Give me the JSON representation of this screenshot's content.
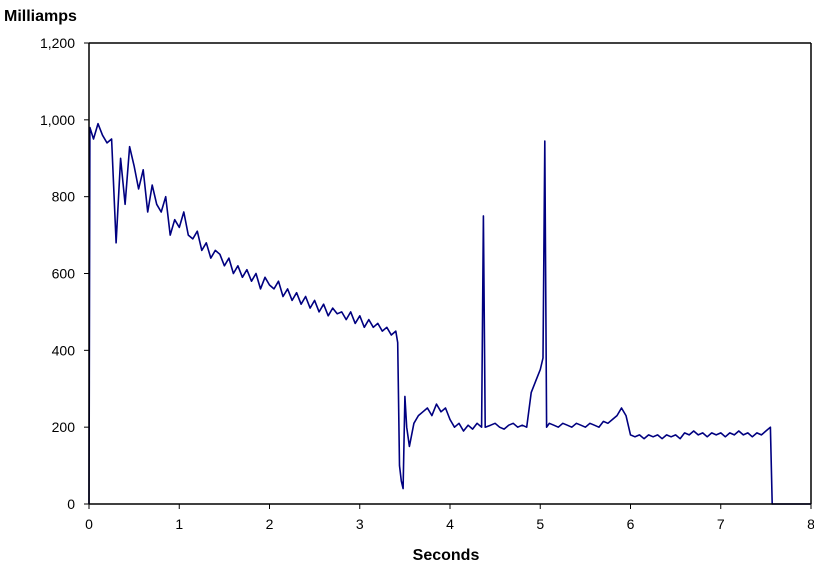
{
  "chart_data": {
    "type": "line",
    "ylabel": "Milliamps",
    "xlabel": "Seconds",
    "xlim": [
      0,
      8
    ],
    "ylim": [
      0,
      1200
    ],
    "x_ticks": [
      "0",
      "1",
      "2",
      "3",
      "4",
      "5",
      "6",
      "7",
      "8"
    ],
    "y_ticks": [
      "0",
      "200",
      "400",
      "600",
      "800",
      "1,000",
      "1,200"
    ],
    "grid": false,
    "line_color": "#000080",
    "series": [
      {
        "points": [
          [
            0.0,
            0
          ],
          [
            0.01,
            980
          ],
          [
            0.05,
            950
          ],
          [
            0.1,
            990
          ],
          [
            0.15,
            960
          ],
          [
            0.2,
            940
          ],
          [
            0.25,
            950
          ],
          [
            0.3,
            680
          ],
          [
            0.35,
            900
          ],
          [
            0.4,
            780
          ],
          [
            0.45,
            930
          ],
          [
            0.5,
            880
          ],
          [
            0.55,
            820
          ],
          [
            0.6,
            870
          ],
          [
            0.65,
            760
          ],
          [
            0.7,
            830
          ],
          [
            0.75,
            780
          ],
          [
            0.8,
            760
          ],
          [
            0.85,
            800
          ],
          [
            0.9,
            700
          ],
          [
            0.95,
            740
          ],
          [
            1.0,
            720
          ],
          [
            1.05,
            760
          ],
          [
            1.1,
            700
          ],
          [
            1.15,
            690
          ],
          [
            1.2,
            710
          ],
          [
            1.25,
            660
          ],
          [
            1.3,
            680
          ],
          [
            1.35,
            640
          ],
          [
            1.4,
            660
          ],
          [
            1.45,
            650
          ],
          [
            1.5,
            620
          ],
          [
            1.55,
            640
          ],
          [
            1.6,
            600
          ],
          [
            1.65,
            620
          ],
          [
            1.7,
            590
          ],
          [
            1.75,
            610
          ],
          [
            1.8,
            580
          ],
          [
            1.85,
            600
          ],
          [
            1.9,
            560
          ],
          [
            1.95,
            590
          ],
          [
            2.0,
            570
          ],
          [
            2.05,
            560
          ],
          [
            2.1,
            580
          ],
          [
            2.15,
            540
          ],
          [
            2.2,
            560
          ],
          [
            2.25,
            530
          ],
          [
            2.3,
            550
          ],
          [
            2.35,
            520
          ],
          [
            2.4,
            540
          ],
          [
            2.45,
            510
          ],
          [
            2.5,
            530
          ],
          [
            2.55,
            500
          ],
          [
            2.6,
            520
          ],
          [
            2.65,
            490
          ],
          [
            2.7,
            510
          ],
          [
            2.75,
            495
          ],
          [
            2.8,
            500
          ],
          [
            2.85,
            480
          ],
          [
            2.9,
            500
          ],
          [
            2.95,
            470
          ],
          [
            3.0,
            490
          ],
          [
            3.05,
            460
          ],
          [
            3.1,
            480
          ],
          [
            3.15,
            460
          ],
          [
            3.2,
            470
          ],
          [
            3.25,
            450
          ],
          [
            3.3,
            460
          ],
          [
            3.35,
            440
          ],
          [
            3.4,
            450
          ],
          [
            3.42,
            420
          ],
          [
            3.44,
            100
          ],
          [
            3.46,
            60
          ],
          [
            3.48,
            40
          ],
          [
            3.5,
            280
          ],
          [
            3.52,
            200
          ],
          [
            3.55,
            150
          ],
          [
            3.6,
            210
          ],
          [
            3.65,
            230
          ],
          [
            3.7,
            240
          ],
          [
            3.75,
            250
          ],
          [
            3.8,
            230
          ],
          [
            3.85,
            260
          ],
          [
            3.9,
            240
          ],
          [
            3.95,
            250
          ],
          [
            4.0,
            220
          ],
          [
            4.05,
            200
          ],
          [
            4.1,
            210
          ],
          [
            4.15,
            190
          ],
          [
            4.2,
            205
          ],
          [
            4.25,
            195
          ],
          [
            4.3,
            210
          ],
          [
            4.35,
            200
          ],
          [
            4.37,
            750
          ],
          [
            4.39,
            200
          ],
          [
            4.45,
            205
          ],
          [
            4.5,
            210
          ],
          [
            4.55,
            200
          ],
          [
            4.6,
            195
          ],
          [
            4.65,
            205
          ],
          [
            4.7,
            210
          ],
          [
            4.75,
            200
          ],
          [
            4.8,
            205
          ],
          [
            4.85,
            200
          ],
          [
            4.9,
            290
          ],
          [
            4.95,
            320
          ],
          [
            5.0,
            350
          ],
          [
            5.03,
            380
          ],
          [
            5.05,
            945
          ],
          [
            5.07,
            200
          ],
          [
            5.1,
            210
          ],
          [
            5.15,
            205
          ],
          [
            5.2,
            200
          ],
          [
            5.25,
            210
          ],
          [
            5.3,
            205
          ],
          [
            5.35,
            200
          ],
          [
            5.4,
            210
          ],
          [
            5.45,
            205
          ],
          [
            5.5,
            200
          ],
          [
            5.55,
            210
          ],
          [
            5.6,
            205
          ],
          [
            5.65,
            200
          ],
          [
            5.7,
            215
          ],
          [
            5.75,
            210
          ],
          [
            5.8,
            220
          ],
          [
            5.85,
            230
          ],
          [
            5.9,
            250
          ],
          [
            5.95,
            230
          ],
          [
            6.0,
            180
          ],
          [
            6.05,
            175
          ],
          [
            6.1,
            180
          ],
          [
            6.15,
            170
          ],
          [
            6.2,
            180
          ],
          [
            6.25,
            175
          ],
          [
            6.3,
            180
          ],
          [
            6.35,
            170
          ],
          [
            6.4,
            180
          ],
          [
            6.45,
            175
          ],
          [
            6.5,
            180
          ],
          [
            6.55,
            170
          ],
          [
            6.6,
            185
          ],
          [
            6.65,
            180
          ],
          [
            6.7,
            190
          ],
          [
            6.75,
            180
          ],
          [
            6.8,
            185
          ],
          [
            6.85,
            175
          ],
          [
            6.9,
            185
          ],
          [
            6.95,
            180
          ],
          [
            7.0,
            185
          ],
          [
            7.05,
            175
          ],
          [
            7.1,
            185
          ],
          [
            7.15,
            180
          ],
          [
            7.2,
            190
          ],
          [
            7.25,
            180
          ],
          [
            7.3,
            185
          ],
          [
            7.35,
            175
          ],
          [
            7.4,
            185
          ],
          [
            7.45,
            180
          ],
          [
            7.5,
            190
          ],
          [
            7.55,
            200
          ],
          [
            7.57,
            0
          ],
          [
            8.0,
            0
          ]
        ]
      }
    ]
  }
}
